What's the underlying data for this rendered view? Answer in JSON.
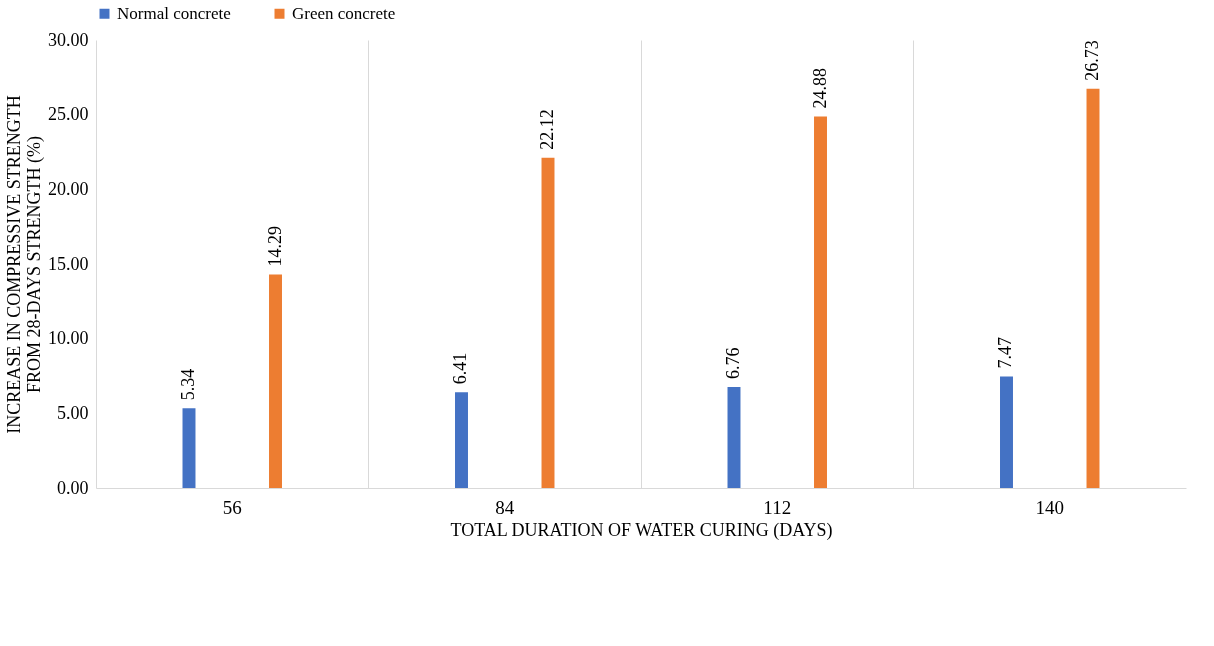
{
  "chart_data": {
    "type": "bar",
    "xlabel": "TOTAL DURATION OF WATER CURING (DAYS)",
    "ylabel": "INCREASE IN COMPRESSIVE STRENGTH\nFROM 28-DAYS STRENGTH (%)",
    "categories": [
      "56",
      "84",
      "112",
      "140"
    ],
    "series": [
      {
        "name": "Normal concrete",
        "color": "#4472c4",
        "values": [
          5.34,
          6.41,
          6.76,
          7.47
        ]
      },
      {
        "name": "Green concrete",
        "color": "#ed7d31",
        "values": [
          14.29,
          22.12,
          24.88,
          26.73
        ]
      }
    ],
    "ylim": [
      0,
      30
    ],
    "yticks": [
      {
        "value": 0,
        "label": "0.00"
      },
      {
        "value": 5,
        "label": "5.00"
      },
      {
        "value": 10,
        "label": "10.00"
      },
      {
        "value": 15,
        "label": "15.00"
      },
      {
        "value": 20,
        "label": "20.00"
      },
      {
        "value": 25,
        "label": "25.00"
      },
      {
        "value": 30,
        "label": "30.00"
      }
    ],
    "grid": "x",
    "legend": "top",
    "data_labels": true
  }
}
